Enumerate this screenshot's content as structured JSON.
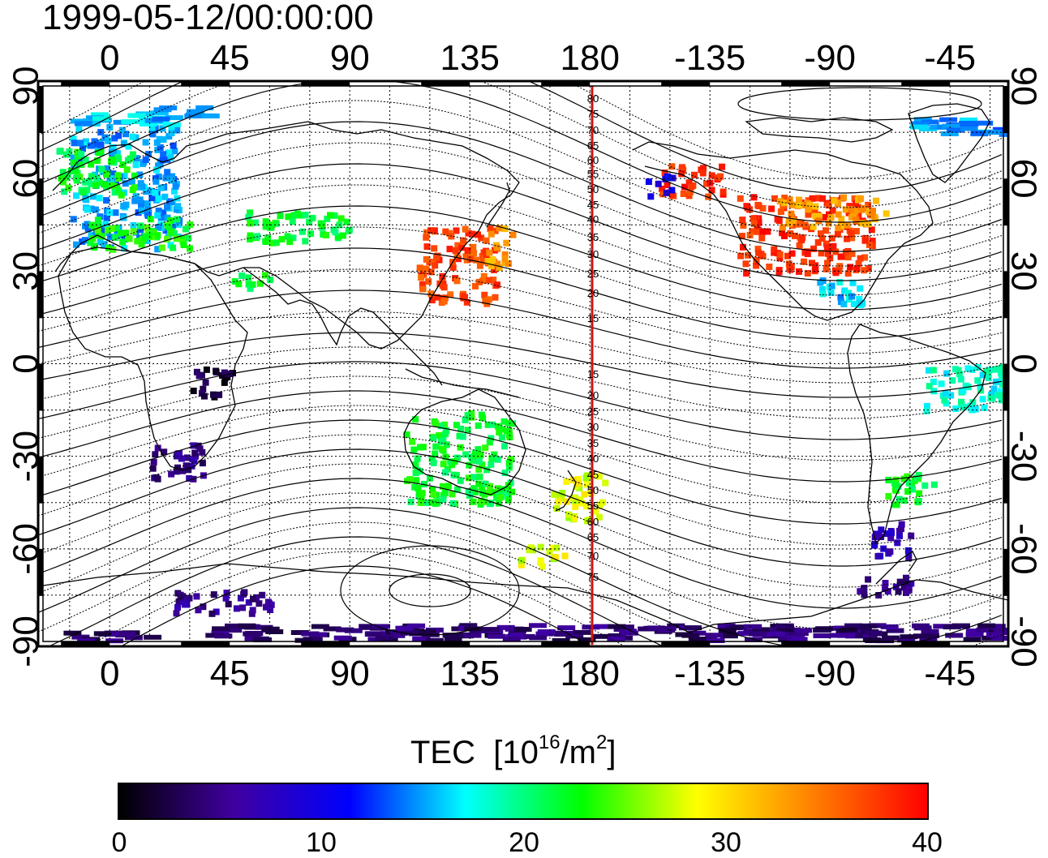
{
  "header": {
    "title": "1999-05-12/00:00:00"
  },
  "map": {
    "lon_ticks": [
      "0",
      "45",
      "90",
      "135",
      "180",
      "-135",
      "-90",
      "-45"
    ],
    "lat_ticks": [
      "90",
      "60",
      "30",
      "0",
      "-30",
      "-60",
      "-90"
    ],
    "meridian_labels_north": [
      "80",
      "75",
      "70",
      "65",
      "60",
      "55",
      "50",
      "45",
      "40",
      "35",
      "30",
      "25",
      "20",
      "15"
    ],
    "meridian_labels_south": [
      "15",
      "20",
      "25",
      "30",
      "35",
      "40",
      "45",
      "50",
      "55",
      "60",
      "65",
      "70",
      "75"
    ],
    "colors": {
      "meridian_line": "#d01010",
      "contour": "#000000",
      "grid": "#000000"
    }
  },
  "colorbar": {
    "label": "TEC",
    "unit_base": "[10",
    "unit_exp": "16",
    "unit_mid": "/m",
    "unit_exp2": "2",
    "unit_end": "]",
    "ticks": [
      "0",
      "10",
      "20",
      "30",
      "40"
    ],
    "colormap": [
      "#000000",
      "#4000a0",
      "#0000ff",
      "#00ffff",
      "#00ff00",
      "#ffff00",
      "#ff8000",
      "#ff0000"
    ]
  },
  "chart_data": {
    "type": "heatmap",
    "xlabel": "",
    "ylabel": "",
    "x_range": [
      -25,
      335
    ],
    "y_range": [
      -90,
      90
    ],
    "value_range": [
      0,
      40
    ],
    "regions": [
      {
        "lon": [
          -15,
          25
        ],
        "lat": [
          38,
          78
        ],
        "value": 15
      },
      {
        "lon": [
          -20,
          10
        ],
        "lat": [
          55,
          70
        ],
        "value": 22
      },
      {
        "lon": [
          -10,
          30
        ],
        "lat": [
          38,
          48
        ],
        "value": 23
      },
      {
        "lon": [
          115,
          145
        ],
        "lat": [
          20,
          45
        ],
        "value": 37
      },
      {
        "lon": [
          140,
          150
        ],
        "lat": [
          32,
          45
        ],
        "value": 33
      },
      {
        "lon": [
          235,
          285
        ],
        "lat": [
          30,
          55
        ],
        "value": 38
      },
      {
        "lon": [
          250,
          290
        ],
        "lat": [
          45,
          55
        ],
        "value": 33
      },
      {
        "lon": [
          265,
          285
        ],
        "lat": [
          20,
          28
        ],
        "value": 16
      },
      {
        "lon": [
          205,
          230
        ],
        "lat": [
          55,
          65
        ],
        "value": 38
      },
      {
        "lon": [
          200,
          210
        ],
        "lat": [
          55,
          62
        ],
        "value": 10
      },
      {
        "lon": [
          110,
          150
        ],
        "lat": [
          -45,
          -15
        ],
        "value": 22
      },
      {
        "lon": [
          165,
          185
        ],
        "lat": [
          -50,
          -35
        ],
        "value": 28
      },
      {
        "lon": [
          150,
          170
        ],
        "lat": [
          -65,
          -58
        ],
        "value": 28
      },
      {
        "lon": [
          15,
          35
        ],
        "lat": [
          -37,
          -25
        ],
        "value": 5
      },
      {
        "lon": [
          30,
          45
        ],
        "lat": [
          -10,
          0
        ],
        "value": 2
      },
      {
        "lon": [
          290,
          310
        ],
        "lat": [
          -45,
          -35
        ],
        "value": 22
      },
      {
        "lon": [
          285,
          300
        ],
        "lat": [
          -62,
          -50
        ],
        "value": 7
      },
      {
        "lon": [
          280,
          300
        ],
        "lat": [
          -75,
          -68
        ],
        "value": 5
      },
      {
        "lon": [
          20,
          60
        ],
        "lat": [
          -80,
          -73
        ],
        "value": 5
      },
      {
        "lon": [
          -20,
          15
        ],
        "lat": [
          -89,
          -86
        ],
        "value": 4
      },
      {
        "lon": [
          35,
          345
        ],
        "lat": [
          -89,
          -84
        ],
        "value": 4
      },
      {
        "lon": [
          -15,
          20
        ],
        "lat": [
          78,
          82
        ],
        "value": 16
      },
      {
        "lon": [
          15,
          35
        ],
        "lat": [
          80,
          84
        ],
        "value": 15
      },
      {
        "lon": [
          300,
          335
        ],
        "lat": [
          75,
          80
        ],
        "value": 15
      },
      {
        "lon": [
          50,
          90
        ],
        "lat": [
          40,
          50
        ],
        "value": 22
      },
      {
        "lon": [
          305,
          335
        ],
        "lat": [
          -15,
          0
        ],
        "value": 18
      },
      {
        "lon": [
          45,
          60
        ],
        "lat": [
          25,
          30
        ],
        "value": 22
      }
    ]
  }
}
